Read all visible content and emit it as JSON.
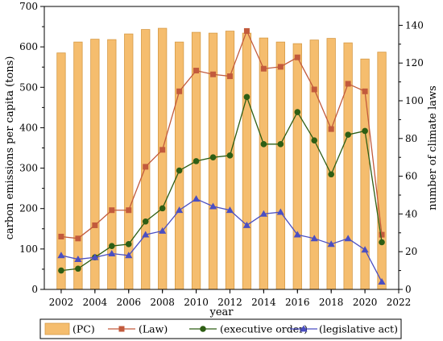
{
  "chart_data": {
    "type": "bar+line",
    "x": [
      2002,
      2003,
      2004,
      2005,
      2006,
      2007,
      2008,
      2009,
      2010,
      2011,
      2012,
      2013,
      2014,
      2015,
      2016,
      2017,
      2018,
      2019,
      2020,
      2021
    ],
    "xlabel": "year",
    "ylabel_left": "carbon emissions per capita (tons)",
    "ylabel_right": "number of climate laws",
    "xlim": [
      2001,
      2022
    ],
    "xticks": [
      "2002",
      "2004",
      "2006",
      "2008",
      "2010",
      "2012",
      "2014",
      "2016",
      "2018",
      "2020",
      "2022"
    ],
    "ylim_left": [
      0,
      700
    ],
    "yticks_left": [
      "0",
      "100",
      "200",
      "300",
      "400",
      "500",
      "600",
      "700"
    ],
    "ylim_right": [
      0,
      150
    ],
    "yticks_right": [
      "0",
      "20",
      "40",
      "60",
      "80",
      "100",
      "120",
      "140"
    ],
    "bars": {
      "name": "(PC)",
      "axis": "left",
      "color": "#f5bd6e",
      "edge_color": "#d69a45",
      "values": [
        585,
        612,
        619,
        618,
        632,
        643,
        646,
        612,
        636,
        634,
        639,
        634,
        622,
        612,
        608,
        617,
        621,
        610,
        570,
        587
      ]
    },
    "series": [
      {
        "name": "(Law)",
        "axis": "right",
        "color": "#c25a3c",
        "marker": "square",
        "values": [
          28,
          27,
          34,
          42,
          42,
          65,
          74,
          105,
          116,
          114,
          113,
          137,
          117,
          118,
          123,
          106,
          85,
          109,
          105,
          29
        ]
      },
      {
        "name": "(executive order)",
        "axis": "right",
        "color": "#2e5e14",
        "marker": "circle",
        "values": [
          10,
          11,
          17,
          23,
          24,
          36,
          43,
          63,
          68,
          70,
          71,
          102,
          77,
          77,
          94,
          79,
          61,
          82,
          84,
          25
        ]
      },
      {
        "name": "(legislative act)",
        "axis": "right",
        "color": "#4a4ec2",
        "marker": "triangle",
        "values": [
          18,
          16,
          17,
          19,
          18,
          29,
          31,
          42,
          48,
          44,
          42,
          34,
          40,
          41,
          29,
          27,
          24,
          27,
          21,
          4
        ]
      }
    ],
    "legend_placement": "bottom"
  }
}
